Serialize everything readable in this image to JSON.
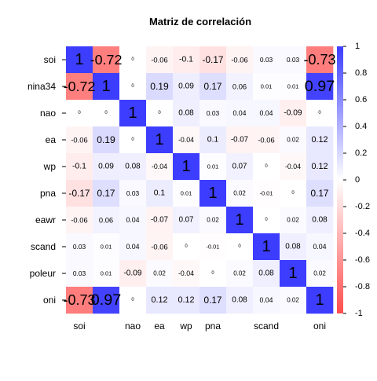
{
  "chart_data": {
    "type": "heatmap",
    "title": "Matriz de correlación",
    "variables": [
      "soi",
      "nina34",
      "nao",
      "ea",
      "wp",
      "pna",
      "eawr",
      "scand",
      "poleur",
      "oni"
    ],
    "x_tick_labels": [
      "soi",
      "",
      "nao",
      "ea",
      "wp",
      "pna",
      "",
      "scand",
      "",
      "oni"
    ],
    "matrix": [
      [
        "1",
        "-0.72",
        "0",
        "-0.06",
        "-0.1",
        "-0.17",
        "-0.06",
        "0.03",
        "0.03",
        "-0.73"
      ],
      [
        "-0.72",
        "1",
        "0",
        "0.19",
        "0.09",
        "0.17",
        "0.06",
        "0.01",
        "0.01",
        "0.97"
      ],
      [
        "0",
        "0",
        "1",
        "0",
        "0.08",
        "0.03",
        "0.04",
        "0.04",
        "-0.09",
        "0"
      ],
      [
        "-0.06",
        "0.19",
        "0",
        "1",
        "-0.04",
        "0.1",
        "-0.07",
        "-0.06",
        "0.02",
        "0.12"
      ],
      [
        "-0.1",
        "0.09",
        "0.08",
        "-0.04",
        "1",
        "0.01",
        "0.07",
        "0",
        "-0.04",
        "0.12"
      ],
      [
        "-0.17",
        "0.17",
        "0.03",
        "0.1",
        "0.01",
        "1",
        "0.02",
        "-0.01",
        "0",
        "0.17"
      ],
      [
        "-0.06",
        "0.06",
        "0.04",
        "-0.07",
        "0.07",
        "0.02",
        "1",
        "0",
        "0.02",
        "0.08"
      ],
      [
        "0.03",
        "0.01",
        "0.04",
        "-0.06",
        "0",
        "-0.01",
        "0",
        "1",
        "0.08",
        "0.04"
      ],
      [
        "0.03",
        "0.01",
        "-0.09",
        "0.02",
        "-0.04",
        "0",
        "0.02",
        "0.08",
        "1",
        "0.02"
      ],
      [
        "-0.73",
        "0.97",
        "0",
        "0.12",
        "0.12",
        "0.17",
        "0.08",
        "0.04",
        "0.02",
        "1"
      ]
    ],
    "colorbar": {
      "range": [
        -1,
        1
      ],
      "ticks": [
        "1",
        "0.8",
        "0.6",
        "0.4",
        "0.2",
        "0",
        "-0.2",
        "-0.4",
        "-0.6",
        "-0.8",
        "-1"
      ],
      "low_color": "#ff4d4d",
      "mid_color": "#ffffff",
      "high_color": "#3d3dff"
    },
    "legend": "right"
  }
}
